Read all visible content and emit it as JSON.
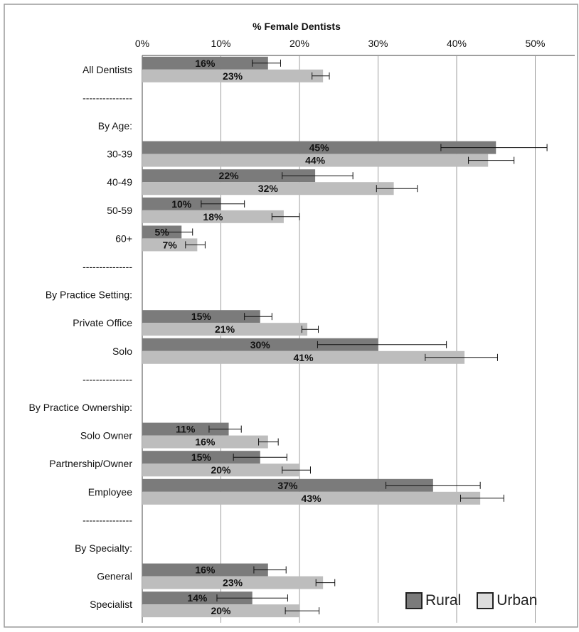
{
  "chart_data": {
    "type": "bar",
    "orientation": "horizontal",
    "title": "% Female Dentists",
    "xlim": [
      0,
      55
    ],
    "x_ticks": [
      "0%",
      "10%",
      "20%",
      "30%",
      "40%",
      "50%"
    ],
    "grid": true,
    "legend_position": "bottom-right",
    "rows": [
      {
        "label": "All Dentists",
        "kind": "data",
        "rural": 16,
        "urban": 23,
        "rural_label": "16%",
        "urban_label": "23%",
        "rural_err": [
          14.0,
          17.6
        ],
        "urban_err": [
          21.6,
          23.8
        ]
      },
      {
        "label": "---------------",
        "kind": "separator"
      },
      {
        "label": "By Age:",
        "kind": "header"
      },
      {
        "label": "30-39",
        "kind": "data",
        "rural": 45,
        "urban": 44,
        "rural_label": "45%",
        "urban_label": "44%",
        "rural_err": [
          38.0,
          51.5
        ],
        "urban_err": [
          41.5,
          47.3
        ]
      },
      {
        "label": "40-49",
        "kind": "data",
        "rural": 22,
        "urban": 32,
        "rural_label": "22%",
        "urban_label": "32%",
        "rural_err": [
          17.8,
          26.8
        ],
        "urban_err": [
          29.8,
          35.0
        ]
      },
      {
        "label": "50-59",
        "kind": "data",
        "rural": 10,
        "urban": 18,
        "rural_label": "10%",
        "urban_label": "18%",
        "rural_err": [
          7.5,
          13.0
        ],
        "urban_err": [
          16.5,
          20.0
        ]
      },
      {
        "label": "60+",
        "kind": "data",
        "rural": 5,
        "urban": 7,
        "rural_label": "5%",
        "urban_label": "7%",
        "rural_err": [
          3.0,
          6.4
        ],
        "urban_err": [
          5.5,
          8.0
        ]
      },
      {
        "label": "---------------",
        "kind": "separator"
      },
      {
        "label": "By Practice Setting:",
        "kind": "header"
      },
      {
        "label": "Private Office",
        "kind": "data",
        "rural": 15,
        "urban": 21,
        "rural_label": "15%",
        "urban_label": "21%",
        "rural_err": [
          13.0,
          16.5
        ],
        "urban_err": [
          20.3,
          22.4
        ]
      },
      {
        "label": "Solo",
        "kind": "data",
        "rural": 30,
        "urban": 41,
        "rural_label": "30%",
        "urban_label": "41%",
        "rural_err": [
          22.3,
          38.7
        ],
        "urban_err": [
          36.0,
          45.2
        ]
      },
      {
        "label": "---------------",
        "kind": "separator"
      },
      {
        "label": "By Practice Ownership:",
        "kind": "header"
      },
      {
        "label": "Solo Owner",
        "kind": "data",
        "rural": 11,
        "urban": 16,
        "rural_label": "11%",
        "urban_label": "16%",
        "rural_err": [
          8.5,
          12.6
        ],
        "urban_err": [
          14.8,
          17.3
        ]
      },
      {
        "label": "Partnership/Owner",
        "kind": "data",
        "rural": 15,
        "urban": 20,
        "rural_label": "15%",
        "urban_label": "20%",
        "rural_err": [
          11.6,
          18.4
        ],
        "urban_err": [
          17.8,
          21.4
        ]
      },
      {
        "label": "Employee",
        "kind": "data",
        "rural": 37,
        "urban": 43,
        "rural_label": "37%",
        "urban_label": "43%",
        "rural_err": [
          31.0,
          43.0
        ],
        "urban_err": [
          40.5,
          46.0
        ]
      },
      {
        "label": "---------------",
        "kind": "separator"
      },
      {
        "label": "By Specialty:",
        "kind": "header"
      },
      {
        "label": "General",
        "kind": "data",
        "rural": 16,
        "urban": 23,
        "rural_label": "16%",
        "urban_label": "23%",
        "rural_err": [
          14.2,
          18.3
        ],
        "urban_err": [
          22.1,
          24.5
        ]
      },
      {
        "label": "Specialist",
        "kind": "data",
        "rural": 14,
        "urban": 20,
        "rural_label": "14%",
        "urban_label": "20%",
        "rural_err": [
          9.5,
          18.5
        ],
        "urban_err": [
          18.2,
          22.5
        ]
      }
    ],
    "series": [
      {
        "name": "Rural",
        "color": "#7b7b7b"
      },
      {
        "name": "Urban",
        "color": "#bdbdbd"
      }
    ]
  },
  "legend": {
    "rural": "Rural",
    "urban": "Urban"
  }
}
